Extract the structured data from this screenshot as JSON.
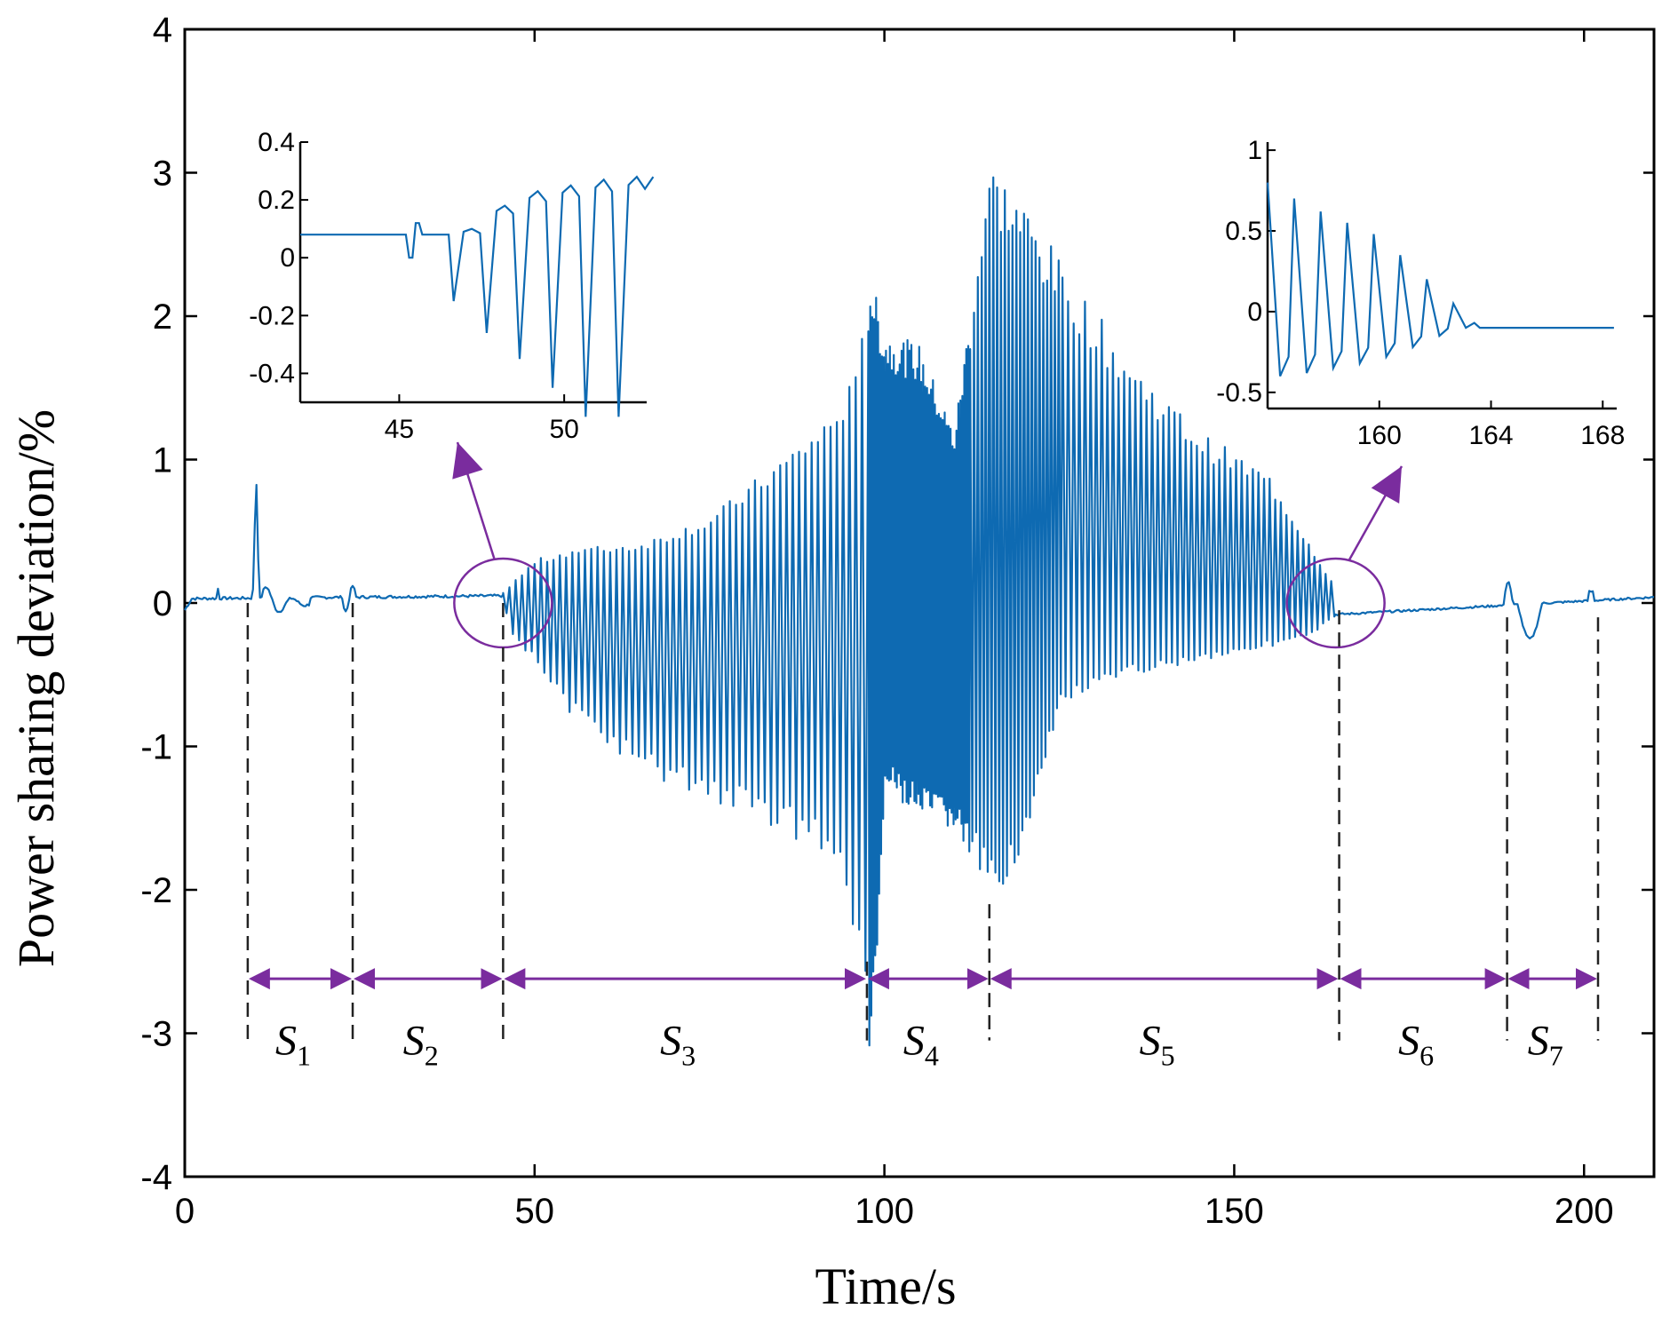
{
  "chart_data": {
    "type": "line",
    "xlabel": "Time/s",
    "ylabel": "Power sharing deviation/%",
    "xlim": [
      0,
      210
    ],
    "ylim": [
      -4,
      4
    ],
    "x_ticks": [
      0,
      50,
      100,
      150,
      200
    ],
    "y_ticks": [
      -4,
      -3,
      -2,
      -1,
      0,
      1,
      2,
      3,
      4
    ],
    "line_color": "#0e6ab2",
    "annotation_color": "#7a2c9e",
    "segments": [
      {
        "label": "S",
        "sub": "1",
        "start": 9,
        "end": 24
      },
      {
        "label": "S",
        "sub": "2",
        "start": 24,
        "end": 45.5
      },
      {
        "label": "S",
        "sub": "3",
        "start": 45.5,
        "end": 97.5
      },
      {
        "label": "S",
        "sub": "4",
        "start": 97.5,
        "end": 115
      },
      {
        "label": "S",
        "sub": "5",
        "start": 115,
        "end": 165
      },
      {
        "label": "S",
        "sub": "6",
        "start": 165,
        "end": 189
      },
      {
        "label": "S",
        "sub": "7",
        "start": 189,
        "end": 202
      }
    ],
    "series": [
      {
        "name": "Power sharing deviation",
        "envelope": [
          {
            "t": 0,
            "upper": 0.02,
            "lower": -0.05
          },
          {
            "t": 45,
            "upper": 0.05,
            "lower": 0.05
          },
          {
            "t": 46,
            "upper": 0.1,
            "lower": -0.2
          },
          {
            "t": 50,
            "upper": 0.3,
            "lower": -0.45
          },
          {
            "t": 55,
            "upper": 0.38,
            "lower": -0.8
          },
          {
            "t": 65,
            "upper": 0.42,
            "lower": -1.2
          },
          {
            "t": 75,
            "upper": 0.6,
            "lower": -1.4
          },
          {
            "t": 85,
            "upper": 1.0,
            "lower": -1.6
          },
          {
            "t": 92,
            "upper": 1.3,
            "lower": -1.8
          },
          {
            "t": 96,
            "upper": 1.6,
            "lower": -2.5
          },
          {
            "t": 98,
            "upper": 2.3,
            "lower": -3.25
          },
          {
            "t": 100,
            "upper": 1.9,
            "lower": -1.3
          },
          {
            "t": 105,
            "upper": 1.8,
            "lower": -1.5
          },
          {
            "t": 110,
            "upper": 1.2,
            "lower": -1.6
          },
          {
            "t": 115,
            "upper": 3.1,
            "lower": -2.1
          },
          {
            "t": 120,
            "upper": 2.8,
            "lower": -1.7
          },
          {
            "t": 125,
            "upper": 2.4,
            "lower": -0.7
          },
          {
            "t": 135,
            "upper": 1.7,
            "lower": -0.5
          },
          {
            "t": 145,
            "upper": 1.2,
            "lower": -0.4
          },
          {
            "t": 155,
            "upper": 0.9,
            "lower": -0.3
          },
          {
            "t": 160,
            "upper": 0.5,
            "lower": -0.25
          },
          {
            "t": 164,
            "upper": 0.15,
            "lower": -0.1
          },
          {
            "t": 165,
            "upper": -0.07,
            "lower": -0.07
          },
          {
            "t": 210,
            "upper": 0.05,
            "lower": 0.05
          }
        ]
      }
    ],
    "insets": [
      {
        "name": "zoom-left",
        "xlim": [
          42,
          52.5
        ],
        "ylim": [
          -0.5,
          0.4
        ],
        "x_ticks": [
          45,
          50
        ],
        "y_ticks": [
          0.4,
          0.2,
          0,
          -0.2,
          -0.4
        ],
        "highlight_center": {
          "t": 45.5,
          "v": 0.0
        },
        "baseline": 0.08,
        "oscillation_start": 46.6,
        "peaks": [
          0.1,
          0.18,
          0.23,
          0.25,
          0.27,
          0.28,
          0.28
        ],
        "troughs": [
          -0.15,
          -0.26,
          -0.35,
          -0.45,
          -0.55,
          -0.6
        ]
      },
      {
        "name": "zoom-right",
        "xlim": [
          156,
          168.5
        ],
        "ylim": [
          -0.6,
          1.05
        ],
        "x_ticks": [
          160,
          164,
          168
        ],
        "y_ticks": [
          1,
          0.5,
          0,
          -0.5
        ],
        "highlight_center": {
          "t": 164.5,
          "v": 0.0
        },
        "baseline": -0.1,
        "decay_end": 164.5,
        "peaks": [
          0.8,
          0.7,
          0.62,
          0.55,
          0.48,
          0.35,
          0.2,
          0.05
        ],
        "troughs": [
          -0.4,
          -0.38,
          -0.35,
          -0.32,
          -0.28,
          -0.22,
          -0.15,
          -0.1
        ]
      }
    ]
  }
}
